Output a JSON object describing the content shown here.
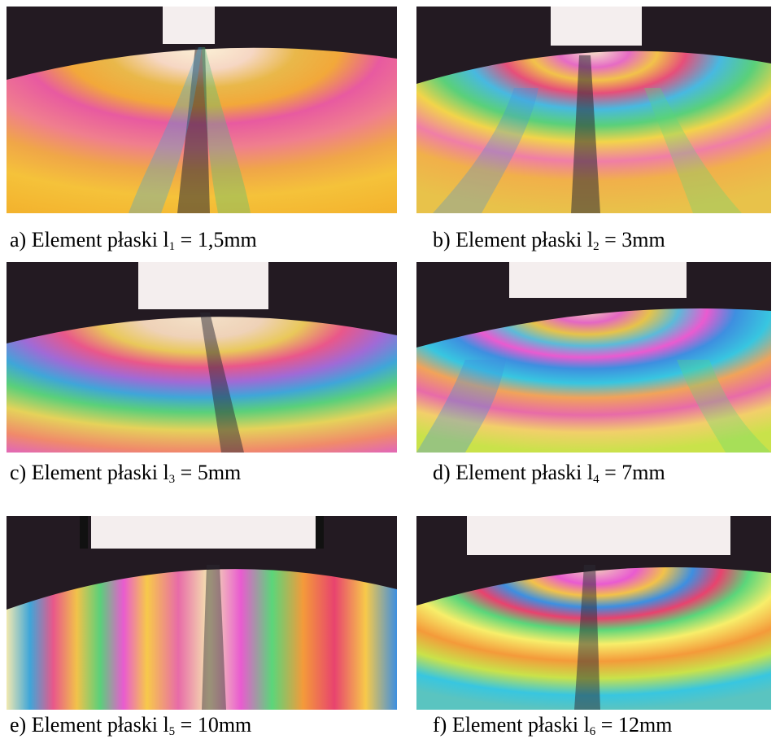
{
  "panels": [
    {
      "letter": "a)",
      "text": "Element płaski l",
      "sub": "1",
      "value": " = 1,5mm",
      "icon": "photoelastic-fringe-photo"
    },
    {
      "letter": "b)",
      "text": "Element płaski l",
      "sub": "2",
      "value": " = 3mm",
      "icon": "photoelastic-fringe-photo"
    },
    {
      "letter": "c)",
      "text": "Element płaski l",
      "sub": "3",
      "value": " = 5mm",
      "icon": "photoelastic-fringe-photo"
    },
    {
      "letter": "d)",
      "text": "Element płaski l",
      "sub": "4",
      "value": " = 7mm",
      "icon": "photoelastic-fringe-photo"
    },
    {
      "letter": "e)",
      "text": "Element płaski l",
      "sub": "5",
      "value": " = 10mm",
      "icon": "photoelastic-fringe-photo"
    },
    {
      "letter": "f)",
      "text": "Element płaski l",
      "sub": "6",
      "value": " = 12mm",
      "icon": "photoelastic-fringe-photo"
    }
  ],
  "colors": {
    "background_dark": "#231a22",
    "punch_block": "#f4eeee",
    "fringe_palette": [
      "#f5e9b0",
      "#f7c94a",
      "#f49a3a",
      "#e8436e",
      "#e95bd0",
      "#8a63d6",
      "#3e8fe0",
      "#38c6e0",
      "#5bd67a",
      "#c9e24a",
      "#f7ee6a"
    ]
  }
}
